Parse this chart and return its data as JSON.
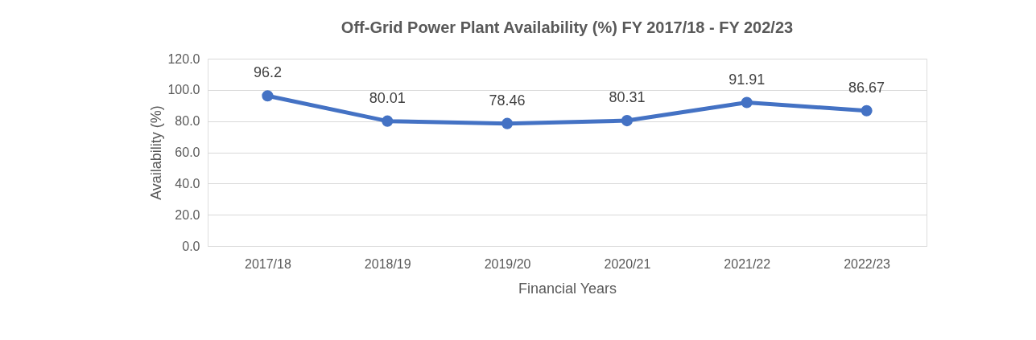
{
  "chart_data": {
    "type": "line",
    "title": "Off-Grid Power Plant Availability (%) FY 2017/18 - FY 202/23",
    "xlabel": "Financial Years",
    "ylabel": "Availability (%)",
    "categories": [
      "2017/18",
      "2018/19",
      "2019/20",
      "2020/21",
      "2021/22",
      "2022/23"
    ],
    "series": [
      {
        "color": "#4472c4",
        "values": [
          96.2,
          80.01,
          78.46,
          80.31,
          91.91,
          86.67
        ]
      }
    ],
    "ylim": [
      0,
      120
    ],
    "yticks": [
      {
        "value": 0,
        "label": "0.0"
      },
      {
        "value": 20,
        "label": "20.0"
      },
      {
        "value": 40,
        "label": "40.0"
      },
      {
        "value": 60,
        "label": "60.0"
      },
      {
        "value": 80,
        "label": "80.0"
      },
      {
        "value": 100,
        "label": "100.0"
      },
      {
        "value": 120,
        "label": "120.0"
      }
    ],
    "grid": "y",
    "marker": "circle",
    "line_style": "solid",
    "data_labels": true
  }
}
